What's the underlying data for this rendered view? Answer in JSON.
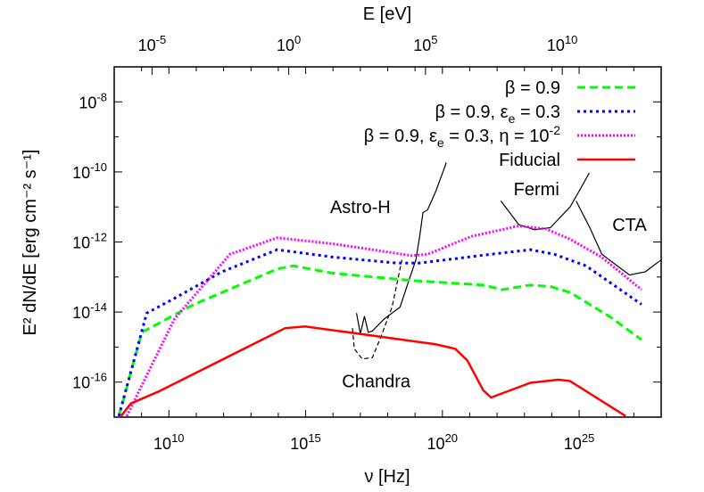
{
  "chart_data": {
    "type": "line",
    "xlabel": "ν [Hz]",
    "ylabel": "E² dN/dE [erg cm⁻² s⁻¹]",
    "x2label": "E [eV]",
    "xscale": "log",
    "yscale": "log",
    "xlim": [
      100000000.0,
      1e+28
    ],
    "ylim": [
      1e-17,
      1e-07
    ],
    "x_ticks": [
      "10^10",
      "10^15",
      "10^20",
      "10^25"
    ],
    "x_tick_values": [
      10000000000.0,
      1000000000000000.0,
      1e+20,
      1e+25
    ],
    "x2_ticks": [
      "10^-5",
      "10^0",
      "10^5",
      "10^10"
    ],
    "x2_tick_values_eV": [
      1e-05,
      1,
      100000.0,
      10000000000.0
    ],
    "y_ticks": [
      "10^-8",
      "10^-10",
      "10^-12",
      "10^-14",
      "10^-16"
    ],
    "y_tick_values": [
      1e-08,
      1e-10,
      1e-12,
      1e-14,
      1e-16
    ],
    "grid": false,
    "legend_position": "top-right",
    "series": [
      {
        "name": "β = 0.9",
        "color": "#00ff00",
        "style": "dashed",
        "log_points": [
          [
            8.17,
            -16.97
          ],
          [
            9.01,
            -14.58
          ],
          [
            10.92,
            -13.78
          ],
          [
            13.96,
            -12.77
          ],
          [
            14.54,
            -12.68
          ],
          [
            15.99,
            -12.89
          ],
          [
            18.88,
            -13.1
          ],
          [
            21.49,
            -13.23
          ],
          [
            22.2,
            -13.36
          ],
          [
            23.2,
            -13.23
          ],
          [
            23.95,
            -13.27
          ],
          [
            24.67,
            -13.44
          ],
          [
            26.1,
            -14.12
          ],
          [
            27.28,
            -14.79
          ]
        ]
      },
      {
        "name": "β = 0.9, εe = 0.3",
        "color": "#0000ff",
        "style": "dotted",
        "log_points": [
          [
            8.17,
            -16.97
          ],
          [
            9.19,
            -14.03
          ],
          [
            10.2,
            -13.61
          ],
          [
            11.94,
            -12.85
          ],
          [
            13.96,
            -12.22
          ],
          [
            15.99,
            -12.43
          ],
          [
            18.3,
            -12.6
          ],
          [
            19.17,
            -12.6
          ],
          [
            21.78,
            -12.35
          ],
          [
            23.22,
            -12.22
          ],
          [
            24.09,
            -12.35
          ],
          [
            25.25,
            -12.68
          ],
          [
            27.28,
            -13.78
          ]
        ]
      },
      {
        "name": "β = 0.9, εe = 0.3, η = 10^-2",
        "color": "#ff00ff",
        "style": "fine-dotted",
        "log_points": [
          [
            8.46,
            -16.97
          ],
          [
            10.2,
            -14.2
          ],
          [
            12.23,
            -12.35
          ],
          [
            13.96,
            -11.88
          ],
          [
            15.99,
            -12.05
          ],
          [
            18.88,
            -12.39
          ],
          [
            19.46,
            -12.35
          ],
          [
            21.06,
            -11.84
          ],
          [
            22.79,
            -11.54
          ],
          [
            23.8,
            -11.63
          ],
          [
            24.67,
            -11.92
          ],
          [
            25.82,
            -12.43
          ],
          [
            27.28,
            -13.36
          ]
        ]
      },
      {
        "name": "Fiducial",
        "color": "#ff0000",
        "style": "solid",
        "log_points": [
          [
            8.25,
            -16.97
          ],
          [
            8.61,
            -16.61
          ],
          [
            9.62,
            -16.27
          ],
          [
            14.25,
            -14.46
          ],
          [
            14.98,
            -14.41
          ],
          [
            19.75,
            -14.92
          ],
          [
            20.47,
            -15.05
          ],
          [
            20.91,
            -15.38
          ],
          [
            21.49,
            -16.23
          ],
          [
            21.78,
            -16.44
          ],
          [
            23.22,
            -16.02
          ],
          [
            24.24,
            -15.93
          ],
          [
            24.67,
            -15.97
          ],
          [
            26.7,
            -16.97
          ]
        ]
      }
    ],
    "sensitivity_curves": [
      {
        "label": "Astro-H",
        "style": "solid",
        "label_pos": [
          17.0,
          -11.0
        ],
        "log_points": [
          [
            16.86,
            -14.03
          ],
          [
            17.0,
            -14.62
          ],
          [
            17.15,
            -14.12
          ],
          [
            17.29,
            -14.58
          ],
          [
            17.44,
            -14.54
          ],
          [
            17.87,
            -14.2
          ],
          [
            18.45,
            -13.86
          ],
          [
            18.81,
            -13.02
          ],
          [
            19.03,
            -12.51
          ],
          [
            19.17,
            -11.84
          ],
          [
            19.29,
            -11.16
          ],
          [
            19.46,
            -11.08
          ],
          [
            19.75,
            -10.57
          ],
          [
            20.11,
            -9.81
          ],
          [
            20.14,
            -9.73
          ]
        ]
      },
      {
        "label": "Chandra",
        "style": "dashed",
        "label_pos": [
          17.58,
          -15.97
        ],
        "log_points": [
          [
            16.71,
            -14.46
          ],
          [
            16.78,
            -15.05
          ],
          [
            17.07,
            -15.34
          ],
          [
            17.44,
            -15.3
          ],
          [
            17.73,
            -14.75
          ],
          [
            18.16,
            -13.86
          ],
          [
            18.52,
            -12.51
          ]
        ]
      },
      {
        "label": "Fermi",
        "style": "solid",
        "label_pos": [
          23.44,
          -10.49
        ],
        "log_points": [
          [
            22.14,
            -10.83
          ],
          [
            22.79,
            -11.5
          ],
          [
            23.37,
            -11.65
          ],
          [
            23.95,
            -11.59
          ],
          [
            24.67,
            -11.0
          ],
          [
            25.1,
            -10.41
          ],
          [
            25.37,
            -10.03
          ]
        ]
      },
      {
        "label": "CTA",
        "style": "solid",
        "label_pos": [
          26.84,
          -11.5
        ],
        "log_points": [
          [
            24.89,
            -10.83
          ],
          [
            25.39,
            -11.59
          ],
          [
            25.83,
            -12.35
          ],
          [
            26.84,
            -12.94
          ],
          [
            27.42,
            -12.85
          ],
          [
            28.0,
            -12.51
          ]
        ]
      }
    ]
  }
}
